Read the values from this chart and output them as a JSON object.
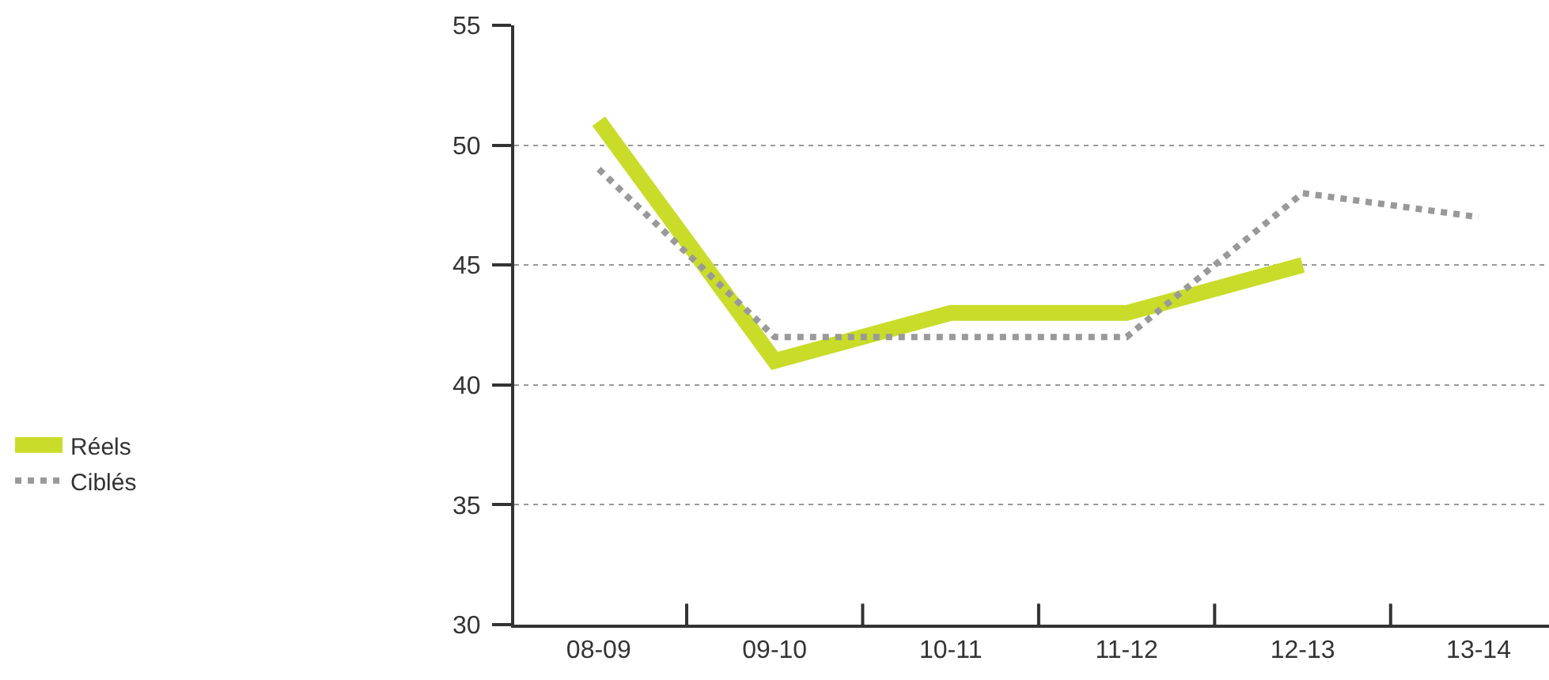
{
  "chart_data": {
    "type": "line",
    "categories": [
      "08-09",
      "09-10",
      "10-11",
      "11-12",
      "12-13",
      "13-14"
    ],
    "series": [
      {
        "name": "Réels",
        "color": "#c9dc2a",
        "values": [
          51,
          41,
          43,
          43,
          45,
          null
        ],
        "line_style": "solid"
      },
      {
        "name": "Ciblés",
        "color": "#999999",
        "values": [
          49,
          42,
          42,
          42,
          48,
          47
        ],
        "line_style": "dotted"
      }
    ],
    "ylim": [
      30,
      55
    ],
    "yticks": [
      30,
      35,
      40,
      45,
      50,
      55
    ],
    "grid": "y",
    "legend": "left",
    "marker": "none"
  }
}
